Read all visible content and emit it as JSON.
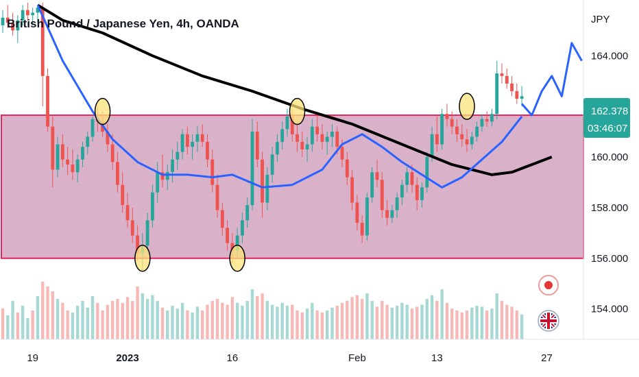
{
  "chart_data": {
    "type": "candlestick",
    "title": "British Pound / Japanese Yen, 4h, OANDA",
    "currency": "JPY",
    "ylim": [
      152.8,
      166.2
    ],
    "y_ticks": [
      164,
      162,
      160,
      158,
      156,
      154
    ],
    "y_tick_labels": [
      "164.000",
      "162.000",
      "160.000",
      "158.000",
      "156.000",
      "154.000"
    ],
    "x_ticks": [
      {
        "label": "19",
        "bar": 6,
        "bold": false
      },
      {
        "label": "2023",
        "bar": 25,
        "bold": true
      },
      {
        "label": "16",
        "bar": 46,
        "bold": false
      },
      {
        "label": "Feb",
        "bar": 71,
        "bold": false
      },
      {
        "label": "13",
        "bar": 87,
        "bold": false
      },
      {
        "label": "27",
        "bar": 109,
        "bold": false
      }
    ],
    "x_range": [
      0,
      114
    ],
    "last_price": 162.378,
    "last_price_label": "162.378",
    "countdown_label": "03:46:07",
    "range_zone": {
      "low": 156.0,
      "high": 161.65,
      "fill": "#d9b2c9",
      "border": "#e0245e"
    },
    "candles": [
      [
        0,
        165.2,
        165.8,
        164.9,
        165.5
      ],
      [
        1,
        165.5,
        166.0,
        165.1,
        165.3
      ],
      [
        2,
        165.3,
        165.7,
        164.8,
        165.0
      ],
      [
        3,
        165.0,
        165.6,
        164.5,
        165.4
      ],
      [
        4,
        165.4,
        166.0,
        165.2,
        165.8
      ],
      [
        5,
        165.8,
        166.1,
        165.4,
        165.6
      ],
      [
        6,
        165.6,
        165.9,
        165.2,
        165.7
      ],
      [
        7,
        165.7,
        166.0,
        165.3,
        165.9
      ],
      [
        8,
        165.9,
        166.1,
        162.0,
        163.2
      ],
      [
        9,
        163.2,
        163.5,
        161.0,
        161.2
      ],
      [
        10,
        161.2,
        161.6,
        158.8,
        159.5
      ],
      [
        11,
        159.5,
        160.8,
        159.2,
        160.5
      ],
      [
        12,
        160.5,
        160.9,
        159.6,
        159.9
      ],
      [
        13,
        159.9,
        160.4,
        159.3,
        159.7
      ],
      [
        14,
        159.7,
        160.3,
        159.1,
        159.4
      ],
      [
        15,
        159.4,
        160.1,
        159.0,
        159.9
      ],
      [
        16,
        159.9,
        160.6,
        159.6,
        160.4
      ],
      [
        17,
        160.4,
        161.0,
        160.1,
        160.8
      ],
      [
        18,
        160.8,
        161.6,
        160.6,
        161.5
      ],
      [
        19,
        161.5,
        162.0,
        161.0,
        161.4
      ],
      [
        20,
        161.4,
        161.8,
        160.8,
        161.0
      ],
      [
        21,
        161.0,
        161.3,
        160.2,
        160.5
      ],
      [
        22,
        160.5,
        160.9,
        159.5,
        159.8
      ],
      [
        23,
        159.8,
        160.2,
        158.6,
        158.9
      ],
      [
        24,
        158.9,
        159.4,
        157.8,
        158.1
      ],
      [
        25,
        158.1,
        158.6,
        157.2,
        157.5
      ],
      [
        26,
        157.5,
        158.0,
        156.6,
        156.9
      ],
      [
        27,
        156.9,
        157.3,
        155.9,
        156.2
      ],
      [
        28,
        156.2,
        157.0,
        155.5,
        156.5
      ],
      [
        29,
        156.5,
        157.8,
        156.2,
        157.5
      ],
      [
        30,
        157.5,
        158.9,
        157.2,
        158.6
      ],
      [
        31,
        158.6,
        159.8,
        158.2,
        159.4
      ],
      [
        32,
        159.4,
        160.1,
        158.8,
        159.1
      ],
      [
        33,
        159.1,
        159.7,
        158.7,
        159.4
      ],
      [
        34,
        159.4,
        160.3,
        159.0,
        159.9
      ],
      [
        35,
        159.9,
        160.6,
        159.5,
        160.2
      ],
      [
        36,
        160.2,
        161.1,
        159.9,
        160.9
      ],
      [
        37,
        160.9,
        161.2,
        160.1,
        160.4
      ],
      [
        38,
        160.4,
        160.9,
        159.9,
        160.6
      ],
      [
        39,
        160.6,
        161.2,
        160.2,
        160.9
      ],
      [
        40,
        160.9,
        161.3,
        160.4,
        160.6
      ],
      [
        41,
        160.6,
        160.9,
        159.6,
        159.9
      ],
      [
        42,
        159.9,
        160.3,
        158.6,
        158.9
      ],
      [
        43,
        158.9,
        159.3,
        157.6,
        157.9
      ],
      [
        44,
        157.9,
        158.2,
        156.9,
        157.2
      ],
      [
        45,
        157.2,
        157.5,
        156.3,
        156.6
      ],
      [
        46,
        156.6,
        157.0,
        155.8,
        156.3
      ],
      [
        47,
        156.3,
        157.2,
        156.0,
        156.9
      ],
      [
        48,
        156.9,
        157.8,
        156.6,
        157.5
      ],
      [
        49,
        157.5,
        158.4,
        157.2,
        158.1
      ],
      [
        50,
        158.1,
        161.5,
        157.9,
        161.0
      ],
      [
        51,
        161.0,
        161.4,
        159.6,
        159.9
      ],
      [
        52,
        159.9,
        160.2,
        157.6,
        158.2
      ],
      [
        53,
        158.2,
        159.6,
        157.9,
        159.3
      ],
      [
        54,
        159.3,
        160.4,
        159.0,
        160.1
      ],
      [
        55,
        160.1,
        160.9,
        159.8,
        160.6
      ],
      [
        56,
        160.6,
        161.4,
        160.3,
        161.1
      ],
      [
        57,
        161.1,
        161.9,
        160.8,
        161.6
      ],
      [
        58,
        161.6,
        161.9,
        160.6,
        160.9
      ],
      [
        59,
        160.9,
        161.3,
        160.2,
        160.6
      ],
      [
        60,
        160.6,
        161.0,
        160.0,
        160.3
      ],
      [
        61,
        160.3,
        160.8,
        159.8,
        160.5
      ],
      [
        62,
        160.5,
        161.5,
        160.2,
        161.2
      ],
      [
        63,
        161.2,
        161.7,
        160.6,
        160.9
      ],
      [
        64,
        160.9,
        161.3,
        160.3,
        160.6
      ],
      [
        65,
        160.6,
        161.0,
        160.1,
        160.8
      ],
      [
        66,
        160.8,
        161.3,
        160.4,
        161.0
      ],
      [
        67,
        161.0,
        161.2,
        160.1,
        160.4
      ],
      [
        68,
        160.4,
        160.7,
        159.6,
        159.9
      ],
      [
        69,
        159.9,
        160.2,
        158.9,
        159.2
      ],
      [
        70,
        159.2,
        159.5,
        157.9,
        158.2
      ],
      [
        71,
        158.2,
        158.5,
        157.1,
        157.4
      ],
      [
        72,
        157.4,
        157.7,
        156.6,
        156.9
      ],
      [
        73,
        156.9,
        158.6,
        156.7,
        158.4
      ],
      [
        74,
        158.4,
        159.6,
        158.2,
        159.4
      ],
      [
        75,
        159.4,
        159.9,
        158.8,
        159.1
      ],
      [
        76,
        159.1,
        159.4,
        157.6,
        157.9
      ],
      [
        77,
        157.9,
        158.3,
        157.3,
        157.6
      ],
      [
        78,
        157.6,
        158.1,
        157.4,
        157.9
      ],
      [
        79,
        157.9,
        158.6,
        157.6,
        158.4
      ],
      [
        80,
        158.4,
        159.1,
        158.1,
        158.9
      ],
      [
        81,
        158.9,
        159.6,
        158.6,
        159.4
      ],
      [
        82,
        159.4,
        159.7,
        158.6,
        158.9
      ],
      [
        83,
        158.9,
        159.2,
        157.9,
        158.3
      ],
      [
        84,
        158.3,
        159.0,
        158.0,
        158.8
      ],
      [
        85,
        158.8,
        160.2,
        158.6,
        160.0
      ],
      [
        86,
        160.0,
        161.2,
        159.8,
        160.9
      ],
      [
        87,
        160.9,
        161.6,
        160.2,
        160.5
      ],
      [
        88,
        160.5,
        161.9,
        160.3,
        161.7
      ],
      [
        89,
        161.7,
        162.1,
        161.2,
        161.5
      ],
      [
        90,
        161.5,
        161.8,
        160.9,
        161.2
      ],
      [
        91,
        161.2,
        161.5,
        160.6,
        160.9
      ],
      [
        92,
        160.9,
        161.3,
        160.4,
        160.7
      ],
      [
        93,
        160.7,
        161.1,
        160.2,
        160.5
      ],
      [
        94,
        160.5,
        161.0,
        160.3,
        160.8
      ],
      [
        95,
        160.8,
        161.4,
        160.6,
        161.2
      ],
      [
        96,
        161.2,
        161.7,
        161.0,
        161.5
      ],
      [
        97,
        161.5,
        161.8,
        161.2,
        161.4
      ],
      [
        98,
        161.4,
        161.9,
        161.2,
        161.7
      ],
      [
        99,
        161.7,
        163.8,
        161.5,
        163.3
      ],
      [
        100,
        163.3,
        163.7,
        162.9,
        163.2
      ],
      [
        101,
        163.2,
        163.5,
        162.7,
        162.9
      ],
      [
        102,
        162.9,
        163.2,
        162.4,
        162.6
      ],
      [
        103,
        162.6,
        162.9,
        162.1,
        162.3
      ],
      [
        104,
        162.3,
        162.8,
        162.0,
        162.4
      ]
    ],
    "ma_black": [
      [
        7,
        166.0
      ],
      [
        12,
        165.4
      ],
      [
        20,
        164.9
      ],
      [
        30,
        164.0
      ],
      [
        40,
        163.2
      ],
      [
        50,
        162.6
      ],
      [
        60,
        161.9
      ],
      [
        70,
        161.3
      ],
      [
        80,
        160.5
      ],
      [
        90,
        159.7
      ],
      [
        98,
        159.3
      ],
      [
        102,
        159.4
      ],
      [
        106,
        159.7
      ],
      [
        110,
        160.0
      ]
    ],
    "ma_blue": [
      [
        7,
        166.0
      ],
      [
        12,
        163.8
      ],
      [
        18,
        161.8
      ],
      [
        22,
        160.7
      ],
      [
        27,
        159.8
      ],
      [
        32,
        159.3
      ],
      [
        37,
        159.3
      ],
      [
        42,
        159.2
      ],
      [
        46,
        159.3
      ],
      [
        52,
        158.8
      ],
      [
        58,
        158.9
      ],
      [
        64,
        159.5
      ],
      [
        68,
        160.5
      ],
      [
        72,
        160.9
      ],
      [
        76,
        160.4
      ],
      [
        80,
        159.8
      ],
      [
        84,
        159.3
      ],
      [
        88,
        158.8
      ],
      [
        92,
        159.2
      ],
      [
        96,
        159.9
      ],
      [
        100,
        160.6
      ],
      [
        104,
        161.6
      ]
    ],
    "projection": [
      [
        104,
        162.1
      ],
      [
        106,
        161.65
      ],
      [
        108,
        162.6
      ],
      [
        110,
        163.2
      ],
      [
        112,
        162.4
      ],
      [
        114,
        164.5
      ],
      [
        116,
        163.8
      ]
    ],
    "pivot_markers": [
      [
        20,
        161.8
      ],
      [
        28,
        156.0
      ],
      [
        47,
        156.0
      ],
      [
        59,
        161.8
      ],
      [
        93,
        162.0
      ]
    ],
    "volume": [
      [
        0,
        32,
        "r"
      ],
      [
        1,
        25,
        "g"
      ],
      [
        2,
        40,
        "g"
      ],
      [
        3,
        28,
        "r"
      ],
      [
        4,
        35,
        "g"
      ],
      [
        5,
        22,
        "g"
      ],
      [
        6,
        30,
        "r"
      ],
      [
        7,
        45,
        "g"
      ],
      [
        8,
        60,
        "r"
      ],
      [
        9,
        55,
        "r"
      ],
      [
        10,
        50,
        "r"
      ],
      [
        11,
        42,
        "g"
      ],
      [
        12,
        38,
        "r"
      ],
      [
        13,
        30,
        "r"
      ],
      [
        14,
        28,
        "g"
      ],
      [
        15,
        35,
        "g"
      ],
      [
        16,
        40,
        "g"
      ],
      [
        17,
        33,
        "g"
      ],
      [
        18,
        45,
        "g"
      ],
      [
        19,
        38,
        "r"
      ],
      [
        20,
        30,
        "r"
      ],
      [
        21,
        36,
        "r"
      ],
      [
        22,
        40,
        "r"
      ],
      [
        23,
        42,
        "r"
      ],
      [
        24,
        38,
        "r"
      ],
      [
        25,
        44,
        "r"
      ],
      [
        26,
        40,
        "r"
      ],
      [
        27,
        55,
        "r"
      ],
      [
        28,
        48,
        "g"
      ],
      [
        29,
        42,
        "g"
      ],
      [
        30,
        46,
        "g"
      ],
      [
        31,
        40,
        "g"
      ],
      [
        32,
        33,
        "r"
      ],
      [
        33,
        30,
        "g"
      ],
      [
        34,
        35,
        "g"
      ],
      [
        35,
        32,
        "g"
      ],
      [
        36,
        38,
        "g"
      ],
      [
        37,
        30,
        "r"
      ],
      [
        38,
        28,
        "g"
      ],
      [
        39,
        34,
        "g"
      ],
      [
        40,
        30,
        "r"
      ],
      [
        41,
        36,
        "r"
      ],
      [
        42,
        40,
        "r"
      ],
      [
        43,
        42,
        "r"
      ],
      [
        44,
        38,
        "r"
      ],
      [
        45,
        36,
        "r"
      ],
      [
        46,
        44,
        "r"
      ],
      [
        47,
        38,
        "g"
      ],
      [
        48,
        35,
        "g"
      ],
      [
        49,
        40,
        "g"
      ],
      [
        50,
        52,
        "g"
      ],
      [
        51,
        45,
        "r"
      ],
      [
        52,
        48,
        "r"
      ],
      [
        53,
        40,
        "g"
      ],
      [
        54,
        36,
        "g"
      ],
      [
        55,
        34,
        "g"
      ],
      [
        56,
        38,
        "g"
      ],
      [
        57,
        35,
        "g"
      ],
      [
        58,
        36,
        "r"
      ],
      [
        59,
        30,
        "r"
      ],
      [
        60,
        28,
        "r"
      ],
      [
        61,
        32,
        "g"
      ],
      [
        62,
        38,
        "g"
      ],
      [
        63,
        30,
        "r"
      ],
      [
        64,
        28,
        "r"
      ],
      [
        65,
        30,
        "g"
      ],
      [
        66,
        33,
        "g"
      ],
      [
        67,
        35,
        "r"
      ],
      [
        68,
        38,
        "r"
      ],
      [
        69,
        40,
        "r"
      ],
      [
        70,
        44,
        "r"
      ],
      [
        71,
        46,
        "r"
      ],
      [
        72,
        42,
        "r"
      ],
      [
        73,
        48,
        "g"
      ],
      [
        74,
        40,
        "g"
      ],
      [
        75,
        34,
        "r"
      ],
      [
        76,
        40,
        "r"
      ],
      [
        77,
        36,
        "r"
      ],
      [
        78,
        33,
        "g"
      ],
      [
        79,
        35,
        "g"
      ],
      [
        80,
        38,
        "g"
      ],
      [
        81,
        36,
        "g"
      ],
      [
        82,
        32,
        "r"
      ],
      [
        83,
        34,
        "r"
      ],
      [
        84,
        36,
        "g"
      ],
      [
        85,
        42,
        "g"
      ],
      [
        86,
        46,
        "g"
      ],
      [
        87,
        40,
        "r"
      ],
      [
        88,
        52,
        "g"
      ],
      [
        89,
        38,
        "r"
      ],
      [
        90,
        32,
        "r"
      ],
      [
        91,
        30,
        "r"
      ],
      [
        92,
        28,
        "r"
      ],
      [
        93,
        30,
        "r"
      ],
      [
        94,
        33,
        "g"
      ],
      [
        95,
        35,
        "g"
      ],
      [
        96,
        34,
        "g"
      ],
      [
        97,
        30,
        "r"
      ],
      [
        98,
        32,
        "g"
      ],
      [
        99,
        48,
        "g"
      ],
      [
        100,
        40,
        "r"
      ],
      [
        101,
        36,
        "r"
      ],
      [
        102,
        34,
        "r"
      ],
      [
        103,
        30,
        "r"
      ],
      [
        104,
        26,
        "g"
      ]
    ],
    "colors": {
      "up": "#26a69a",
      "down": "#ef5350",
      "ma_black": "#000000",
      "ma_blue": "#2962ff",
      "projection": "#2962ff",
      "badge": "#26a69a",
      "marker_fill": "#fde37a",
      "volume_up": "#a7d8d3",
      "volume_down": "#f6b9b7"
    }
  }
}
